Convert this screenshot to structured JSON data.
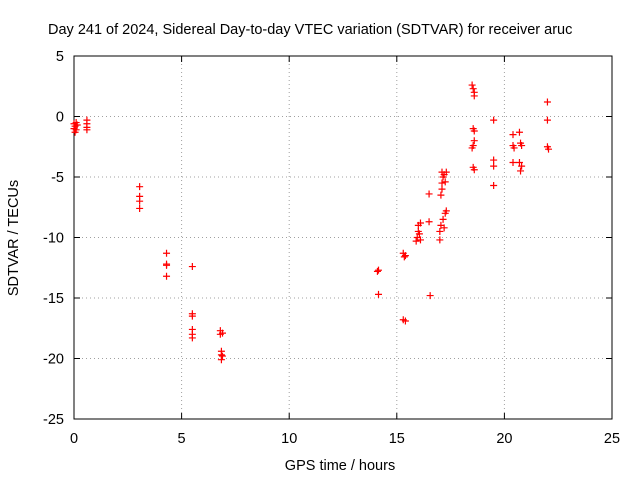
{
  "chart_data": {
    "type": "scatter",
    "title": "Day 241 of 2024, Sidereal Day-to-day VTEC variation (SDTVAR) for receiver aruc",
    "xlabel": "GPS time / hours",
    "ylabel": "SDTVAR / TECUs",
    "xlim": [
      0,
      25
    ],
    "ylim": [
      -25,
      5
    ],
    "xticks": [
      0,
      5,
      10,
      15,
      20,
      25
    ],
    "yticks": [
      5,
      0,
      -5,
      -10,
      -15,
      -20,
      -25
    ],
    "grid": true,
    "marker": "+",
    "color": "#ff0000",
    "series": [
      {
        "name": "SDTVAR",
        "points": [
          [
            0.0,
            -0.6
          ],
          [
            0.0,
            -1.0
          ],
          [
            0.05,
            -0.8
          ],
          [
            0.05,
            -1.3
          ],
          [
            0.1,
            -0.5
          ],
          [
            0.1,
            -1.1
          ],
          [
            0.15,
            -0.7
          ],
          [
            0.6,
            -0.3
          ],
          [
            0.6,
            -0.6
          ],
          [
            0.6,
            -0.9
          ],
          [
            0.6,
            -1.1
          ],
          [
            3.05,
            -5.8
          ],
          [
            3.05,
            -6.6
          ],
          [
            3.05,
            -7.0
          ],
          [
            3.05,
            -7.6
          ],
          [
            4.3,
            -11.3
          ],
          [
            4.3,
            -12.2
          ],
          [
            4.3,
            -12.3
          ],
          [
            4.3,
            -13.2
          ],
          [
            5.5,
            -12.4
          ],
          [
            5.5,
            -16.3
          ],
          [
            5.5,
            -16.5
          ],
          [
            5.5,
            -17.6
          ],
          [
            5.5,
            -18.0
          ],
          [
            5.5,
            -18.3
          ],
          [
            6.8,
            -17.7
          ],
          [
            6.8,
            -18.0
          ],
          [
            6.85,
            -19.4
          ],
          [
            6.85,
            -19.7
          ],
          [
            6.85,
            -20.1
          ],
          [
            6.9,
            -17.9
          ],
          [
            6.9,
            -19.8
          ],
          [
            14.1,
            -12.8
          ],
          [
            14.15,
            -12.7
          ],
          [
            14.15,
            -14.7
          ],
          [
            15.3,
            -11.3
          ],
          [
            15.35,
            -11.6
          ],
          [
            15.4,
            -11.5
          ],
          [
            15.3,
            -16.8
          ],
          [
            15.4,
            -16.9
          ],
          [
            15.9,
            -10.3
          ],
          [
            15.95,
            -10.0
          ],
          [
            16.0,
            -9.5
          ],
          [
            16.0,
            -9.0
          ],
          [
            16.05,
            -9.7
          ],
          [
            16.1,
            -8.8
          ],
          [
            16.1,
            -10.2
          ],
          [
            16.5,
            -6.4
          ],
          [
            16.5,
            -8.7
          ],
          [
            16.55,
            -14.8
          ],
          [
            17.0,
            -10.2
          ],
          [
            17.0,
            -9.5
          ],
          [
            17.05,
            -9.0
          ],
          [
            17.05,
            -6.5
          ],
          [
            17.1,
            -6.0
          ],
          [
            17.1,
            -5.5
          ],
          [
            17.1,
            -4.6
          ],
          [
            17.15,
            -8.5
          ],
          [
            17.15,
            -5.0
          ],
          [
            17.2,
            -9.2
          ],
          [
            17.2,
            -4.8
          ],
          [
            17.25,
            -8.0
          ],
          [
            17.25,
            -5.4
          ],
          [
            17.3,
            -4.6
          ],
          [
            17.3,
            -7.8
          ],
          [
            18.5,
            2.6
          ],
          [
            18.55,
            2.3
          ],
          [
            18.55,
            -1.0
          ],
          [
            18.6,
            2.0
          ],
          [
            18.6,
            1.7
          ],
          [
            18.6,
            -1.2
          ],
          [
            18.5,
            -2.6
          ],
          [
            18.55,
            -2.4
          ],
          [
            18.6,
            -2.0
          ],
          [
            18.55,
            -4.2
          ],
          [
            18.6,
            -4.4
          ],
          [
            19.5,
            -0.3
          ],
          [
            19.5,
            -3.6
          ],
          [
            19.5,
            -4.1
          ],
          [
            19.5,
            -5.7
          ],
          [
            20.4,
            -1.5
          ],
          [
            20.4,
            -2.4
          ],
          [
            20.45,
            -2.6
          ],
          [
            20.4,
            -3.8
          ],
          [
            20.7,
            -1.3
          ],
          [
            20.75,
            -2.2
          ],
          [
            20.8,
            -2.4
          ],
          [
            20.7,
            -3.8
          ],
          [
            20.8,
            -4.1
          ],
          [
            20.75,
            -4.5
          ],
          [
            22.0,
            1.2
          ],
          [
            22.0,
            -0.3
          ],
          [
            22.0,
            -2.5
          ],
          [
            22.05,
            -2.7
          ]
        ]
      }
    ]
  }
}
